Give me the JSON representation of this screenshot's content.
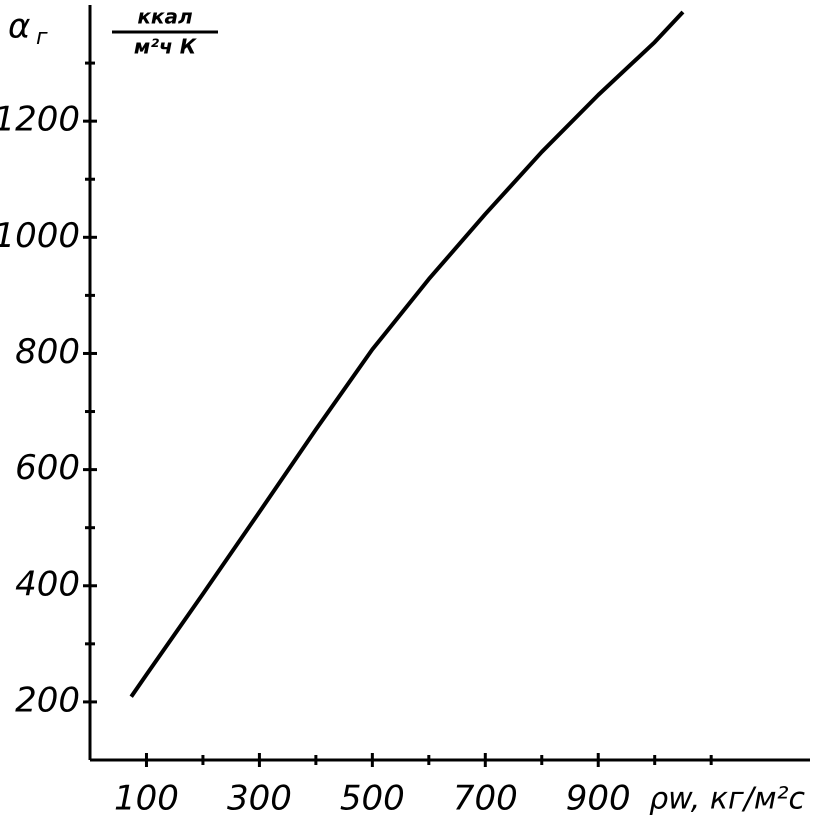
{
  "chart_data": {
    "type": "line",
    "ylabel": "α",
    "ylabel_sub": "г",
    "unit_num": "ккал",
    "unit_den": "м²ч  К",
    "xlabel": "ρw, кг/м²с",
    "x": [
      73,
      100,
      200,
      300,
      400,
      500,
      600,
      700,
      800,
      900,
      1000,
      1050
    ],
    "series": [
      {
        "color": "#000000",
        "values": [
          209,
          247,
          386,
          527,
          669,
          807,
          928,
          1040,
          1147,
          1245,
          1336,
          1388
        ]
      }
    ],
    "xlim": [
      0,
      1275
    ],
    "ylim": [
      100,
      1400
    ],
    "xticks": [
      100,
      300,
      500,
      700,
      900
    ],
    "yticks": [
      200,
      400,
      600,
      800,
      1000,
      1200
    ],
    "xminorticks": [
      200,
      400,
      600,
      800,
      1000,
      1100
    ],
    "yminorticks": [
      300,
      500,
      700,
      900,
      1100,
      1300
    ],
    "grid": false
  }
}
